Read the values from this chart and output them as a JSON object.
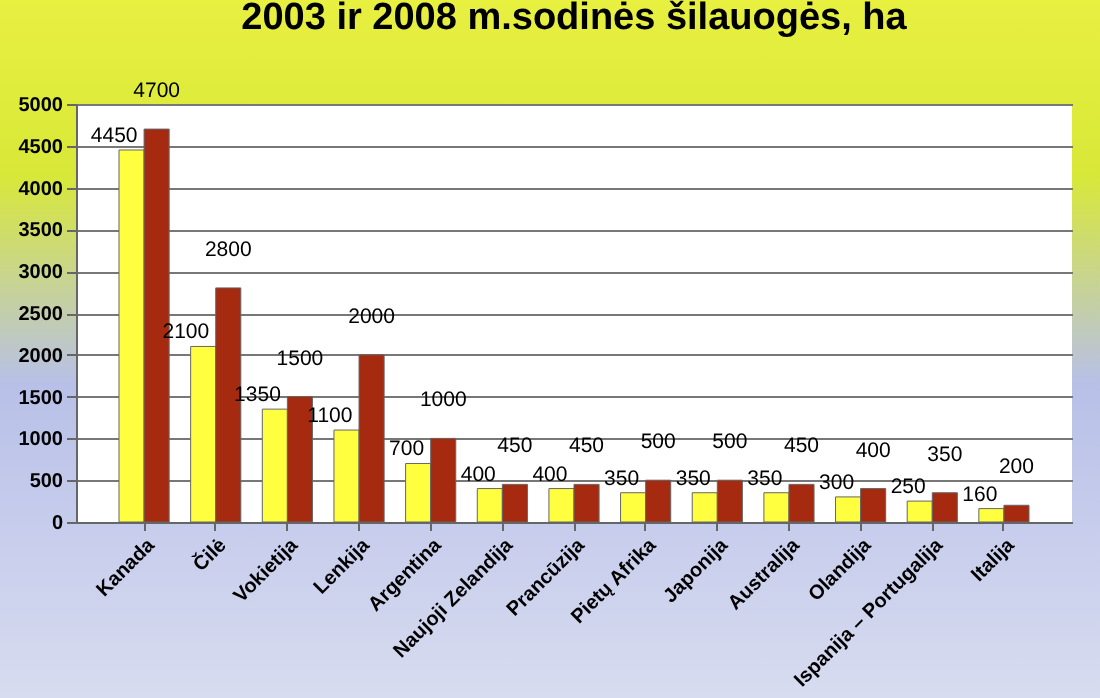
{
  "chart_data": {
    "type": "bar",
    "title": "2003 ir 2008 m.sodinės šilauogės, ha",
    "categories": [
      "Kanada",
      "Čilė",
      "Vokietija",
      "Lenkija",
      "Argentina",
      "Naujoji Zelandija",
      "Prancūzija",
      "Pietų Afrika",
      "Japonija",
      "Australija",
      "Olandija",
      "Ispanija – Portugalija",
      "Italija"
    ],
    "series": [
      {
        "color": "#ffff40",
        "values": [
          4450,
          2100,
          1350,
          1100,
          700,
          400,
          400,
          350,
          350,
          350,
          300,
          250,
          160
        ]
      },
      {
        "color": "#a52a10",
        "values": [
          4700,
          2800,
          1500,
          2000,
          1000,
          450,
          450,
          500,
          500,
          450,
          400,
          350,
          200
        ]
      }
    ],
    "ylim": [
      0,
      5000
    ],
    "yticks": [
      0,
      500,
      1000,
      1500,
      2000,
      2500,
      3000,
      3500,
      4000,
      4500,
      5000
    ],
    "grid": "y",
    "data_labels": true
  }
}
